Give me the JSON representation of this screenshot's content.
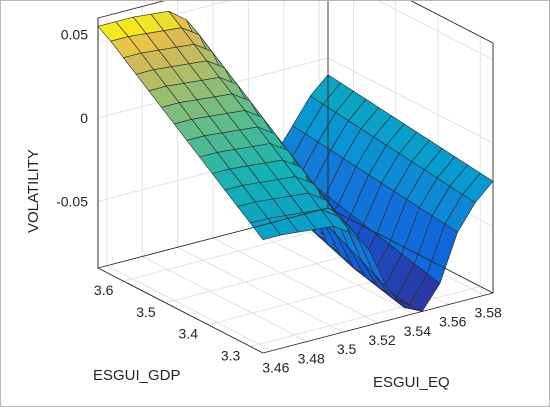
{
  "chart_data": {
    "type": "surface",
    "title": "",
    "xlabel": "ESGUI_EQ",
    "ylabel": "ESGUI_GDP",
    "zlabel": "VOLATILITY",
    "x_ticks": [
      "3.46",
      "3.48",
      "3.5",
      "3.52",
      "3.54",
      "3.56",
      "3.58"
    ],
    "y_ticks": [
      "3.3",
      "3.4",
      "3.5",
      "3.6"
    ],
    "z_ticks": [
      "-0.05",
      "0",
      "0.05"
    ],
    "xlim": [
      3.455,
      3.585
    ],
    "ylim": [
      3.27,
      3.66
    ],
    "zlim": [
      -0.09,
      0.06
    ],
    "grid": true,
    "colormap": "parula",
    "x": [
      3.455,
      3.465,
      3.475,
      3.485,
      3.495,
      3.505,
      3.515,
      3.525,
      3.535,
      3.545,
      3.555,
      3.565,
      3.575,
      3.585
    ],
    "y": [
      3.66,
      3.63,
      3.6,
      3.57,
      3.54,
      3.51,
      3.48,
      3.45,
      3.42,
      3.39,
      3.36,
      3.33,
      3.3,
      3.27
    ],
    "z_description": "z[i][j] with i over y (back to front), j over x",
    "z": [
      [
        0.055,
        0.055,
        0.055,
        0.054,
        0.053,
        0.045,
        0.02,
        -0.01,
        -0.04,
        -0.055,
        -0.05,
        -0.035,
        -0.02,
        -0.01
      ],
      [
        0.05,
        0.05,
        0.049,
        0.048,
        0.047,
        0.04,
        0.015,
        -0.015,
        -0.045,
        -0.058,
        -0.052,
        -0.036,
        -0.021,
        -0.011
      ],
      [
        0.044,
        0.044,
        0.043,
        0.042,
        0.041,
        0.034,
        0.01,
        -0.02,
        -0.05,
        -0.062,
        -0.054,
        -0.037,
        -0.022,
        -0.012
      ],
      [
        0.038,
        0.038,
        0.037,
        0.036,
        0.035,
        0.028,
        0.005,
        -0.025,
        -0.055,
        -0.066,
        -0.056,
        -0.038,
        -0.023,
        -0.013
      ],
      [
        0.032,
        0.032,
        0.031,
        0.03,
        0.029,
        0.022,
        0.0,
        -0.03,
        -0.06,
        -0.07,
        -0.058,
        -0.039,
        -0.024,
        -0.014
      ],
      [
        0.026,
        0.026,
        0.025,
        0.024,
        0.023,
        0.016,
        -0.005,
        -0.035,
        -0.065,
        -0.074,
        -0.06,
        -0.04,
        -0.025,
        -0.015
      ],
      [
        0.02,
        0.02,
        0.019,
        0.018,
        0.017,
        0.01,
        -0.01,
        -0.04,
        -0.068,
        -0.077,
        -0.062,
        -0.041,
        -0.026,
        -0.016
      ],
      [
        0.014,
        0.014,
        0.013,
        0.012,
        0.011,
        0.004,
        -0.015,
        -0.045,
        -0.071,
        -0.08,
        -0.064,
        -0.042,
        -0.027,
        -0.017
      ],
      [
        0.008,
        0.008,
        0.007,
        0.006,
        0.005,
        -0.002,
        -0.02,
        -0.05,
        -0.074,
        -0.083,
        -0.066,
        -0.043,
        -0.028,
        -0.018
      ],
      [
        0.002,
        0.002,
        0.001,
        0.0,
        -0.001,
        -0.008,
        -0.025,
        -0.054,
        -0.077,
        -0.085,
        -0.068,
        -0.044,
        -0.029,
        -0.019
      ],
      [
        -0.004,
        -0.004,
        -0.005,
        -0.006,
        -0.007,
        -0.014,
        -0.03,
        -0.058,
        -0.079,
        -0.087,
        -0.07,
        -0.045,
        -0.03,
        -0.02
      ],
      [
        -0.01,
        -0.01,
        -0.011,
        -0.012,
        -0.013,
        -0.02,
        -0.035,
        -0.062,
        -0.081,
        -0.089,
        -0.072,
        -0.046,
        -0.031,
        -0.021
      ],
      [
        -0.016,
        -0.016,
        -0.017,
        -0.018,
        -0.019,
        -0.026,
        -0.04,
        -0.066,
        -0.083,
        -0.09,
        -0.074,
        -0.047,
        -0.032,
        -0.022
      ],
      [
        -0.022,
        -0.022,
        -0.023,
        -0.024,
        -0.025,
        -0.032,
        -0.045,
        -0.07,
        -0.085,
        -0.09,
        -0.076,
        -0.048,
        -0.033,
        -0.023
      ]
    ]
  }
}
